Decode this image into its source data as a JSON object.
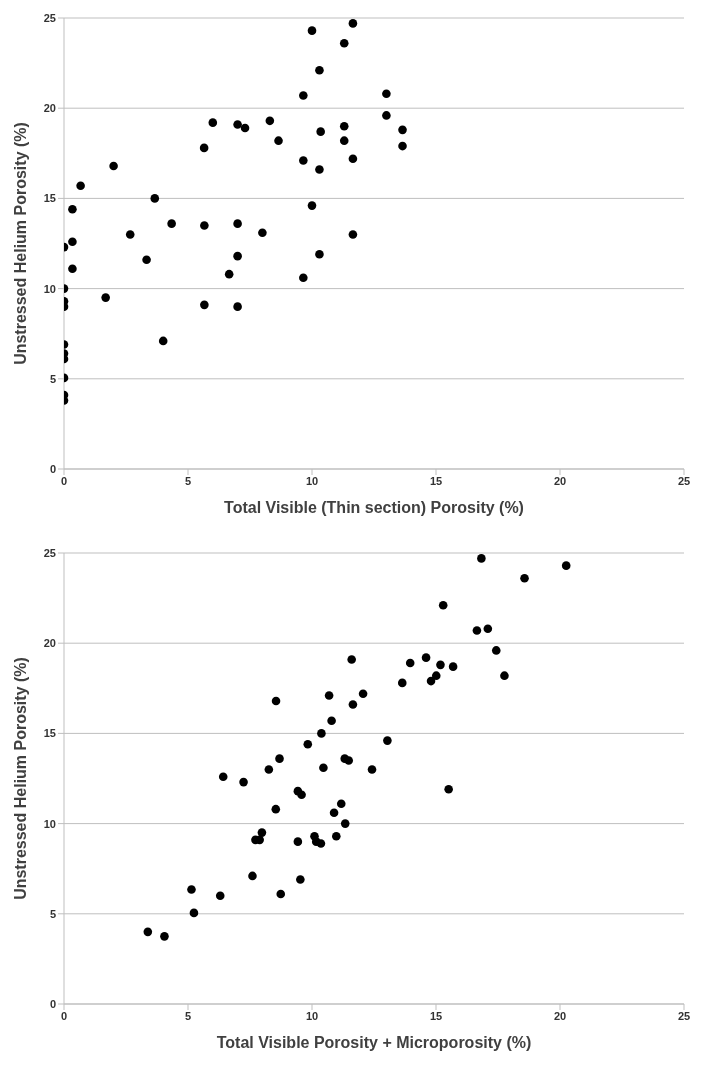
{
  "chart_data": [
    {
      "type": "scatter",
      "xlabel": "Total Visible (Thin section) Porosity (%)",
      "ylabel": "Unstressed Helium Porosity (%)",
      "xlim": [
        0,
        25
      ],
      "ylim": [
        0,
        25
      ],
      "xticks": [
        0,
        5,
        10,
        15,
        20,
        25
      ],
      "yticks": [
        0,
        5,
        10,
        15,
        20,
        25
      ],
      "grid": "y",
      "marker": "circle",
      "legend": false,
      "series": [
        {
          "color": "#000000",
          "x": [
            10.0,
            11.65,
            11.3,
            10.3,
            9.65,
            13.0,
            13.0,
            6.0,
            7.0,
            7.3,
            8.3,
            8.65,
            10.35,
            11.3,
            11.3,
            5.65,
            9.65,
            10.3,
            11.65,
            13.65,
            13.65,
            2.0,
            0.67,
            0.34,
            0.34,
            0.34,
            0,
            0,
            0,
            0,
            0,
            0,
            0,
            0,
            0,
            0,
            1.68,
            2.67,
            3.33,
            3.66,
            4.0,
            4.34,
            5.66,
            5.66,
            7.0,
            6.66,
            7.0,
            7.0,
            8.0,
            10.0,
            10.3,
            9.65,
            11.65
          ],
          "values": [
            24.3,
            24.7,
            23.6,
            22.1,
            20.7,
            20.8,
            19.6,
            19.2,
            19.1,
            18.9,
            19.3,
            18.2,
            18.7,
            19.0,
            18.2,
            17.8,
            17.1,
            16.6,
            17.2,
            18.8,
            17.9,
            16.8,
            15.7,
            14.4,
            12.6,
            11.1,
            12.3,
            10.0,
            9.3,
            9.0,
            6.9,
            6.4,
            6.1,
            5.05,
            4.1,
            3.8,
            9.5,
            13.0,
            11.6,
            15.0,
            7.1,
            13.6,
            13.5,
            9.1,
            13.6,
            10.8,
            11.8,
            9.0,
            13.1,
            14.6,
            11.9,
            10.6,
            13.0
          ]
        }
      ]
    },
    {
      "type": "scatter",
      "xlabel": "Total Visible Porosity + Microporosity (%)",
      "ylabel": "Unstressed Helium Porosity (%)",
      "xlim": [
        0,
        25
      ],
      "ylim": [
        0,
        25
      ],
      "xticks": [
        0,
        5,
        10,
        15,
        20,
        25
      ],
      "yticks": [
        0,
        5,
        10,
        15,
        20,
        25
      ],
      "grid": "y",
      "marker": "circle",
      "legend": false,
      "series": [
        {
          "color": "#000000",
          "x": [
            3.38,
            4.05,
            5.14,
            5.24,
            6.3,
            6.42,
            7.24,
            7.6,
            7.72,
            7.89,
            7.98,
            8.26,
            8.55,
            8.54,
            8.69,
            8.74,
            9.43,
            9.58,
            9.43,
            9.53,
            9.83,
            10.1,
            10.17,
            10.36,
            10.38,
            10.46,
            10.69,
            10.79,
            10.89,
            10.98,
            11.18,
            11.34,
            16.83,
            20.25,
            18.57,
            15.29,
            16.65,
            17.09,
            17.43,
            17.76,
            11.6,
            14.6,
            13.96,
            15.18,
            15.69,
            14.8,
            15.01,
            13.64,
            12.06,
            11.65,
            13.04,
            11.32,
            11.48,
            12.42,
            15.51
          ],
          "values": [
            4.0,
            3.75,
            6.35,
            5.05,
            6.0,
            12.6,
            12.3,
            7.1,
            9.1,
            9.1,
            9.5,
            13.0,
            16.8,
            10.8,
            13.6,
            6.1,
            11.8,
            11.6,
            9.0,
            6.9,
            14.4,
            9.3,
            9.0,
            8.9,
            15.0,
            13.1,
            17.1,
            15.7,
            10.6,
            9.3,
            11.1,
            10.0,
            24.7,
            24.3,
            23.6,
            22.1,
            20.7,
            20.8,
            19.6,
            18.2,
            19.1,
            19.2,
            18.9,
            18.8,
            18.7,
            17.9,
            18.2,
            17.8,
            17.2,
            16.6,
            14.6,
            13.6,
            13.5,
            13.0,
            11.9
          ]
        }
      ]
    }
  ]
}
